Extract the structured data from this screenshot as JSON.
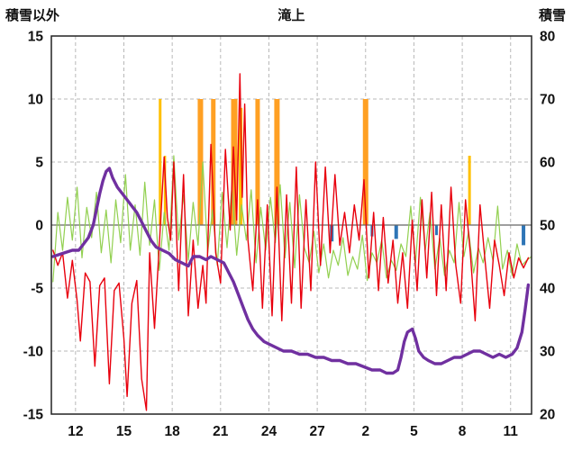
{
  "chart_data": {
    "type": "line",
    "title": "滝上",
    "y_left": {
      "label": "積雪以外",
      "min": -15,
      "max": 15,
      "ticks": [
        15,
        10,
        5,
        0,
        -5,
        -10,
        -15
      ]
    },
    "y_right": {
      "label": "積雪",
      "min": 20,
      "max": 80,
      "ticks": [
        80,
        70,
        60,
        50,
        40,
        30,
        20
      ]
    },
    "x_axis": {
      "min": 10.5,
      "max": 40.3,
      "ticks": [
        {
          "t": 12,
          "label": "12"
        },
        {
          "t": 15,
          "label": "15"
        },
        {
          "t": 18,
          "label": "18"
        },
        {
          "t": 21,
          "label": "21"
        },
        {
          "t": 24,
          "label": "24"
        },
        {
          "t": 27,
          "label": "27"
        },
        {
          "t": 30,
          "label": "2"
        },
        {
          "t": 33,
          "label": "5"
        },
        {
          "t": 36,
          "label": "8"
        },
        {
          "t": 39,
          "label": "11"
        }
      ]
    },
    "grid": {
      "color": "#b8b8b8",
      "dash": "4 3"
    },
    "zero_line_color": "#666666",
    "border_color": "#222222",
    "bars": [
      {
        "name": "precip-bar",
        "t": 17.25,
        "v": 10,
        "w": 3,
        "color": "#ffc000"
      },
      {
        "name": "precip-bar",
        "t": 17.55,
        "v": 5.5,
        "w": 2.5,
        "color": "#ffc000"
      },
      {
        "name": "precip-bar",
        "t": 19.75,
        "v": 10,
        "w": 6,
        "color": "#ffa023"
      },
      {
        "name": "precip-bar",
        "t": 20.55,
        "v": 10,
        "w": 5,
        "color": "#ffa023"
      },
      {
        "name": "precip-bar",
        "t": 21.85,
        "v": 10,
        "w": 7,
        "color": "#ffa023"
      },
      {
        "name": "precip-bar",
        "t": 22.25,
        "v": 9.3,
        "w": 4,
        "color": "#ffc000"
      },
      {
        "name": "precip-bar",
        "t": 23.3,
        "v": 10,
        "w": 5,
        "color": "#ffa023"
      },
      {
        "name": "precip-bar",
        "t": 24.5,
        "v": 10,
        "w": 6,
        "color": "#ffa023"
      },
      {
        "name": "precip-bar",
        "t": 30.0,
        "v": 10,
        "w": 6,
        "color": "#ffa023"
      },
      {
        "name": "precip-bar",
        "t": 36.45,
        "v": 5.5,
        "w": 3,
        "color": "#ffc000"
      },
      {
        "name": "rain-bar",
        "t": 27.9,
        "v": -1.3,
        "w": 4,
        "color": "#2e75b6"
      },
      {
        "name": "rain-bar",
        "t": 30.4,
        "v": -0.9,
        "w": 3,
        "color": "#2e75b6"
      },
      {
        "name": "rain-bar",
        "t": 31.9,
        "v": -1.1,
        "w": 4,
        "color": "#2e75b6"
      },
      {
        "name": "rain-bar",
        "t": 34.4,
        "v": -0.8,
        "w": 3,
        "color": "#2e75b6"
      },
      {
        "name": "rain-bar",
        "t": 39.8,
        "v": -1.6,
        "w": 4,
        "color": "#2e75b6"
      }
    ],
    "series": [
      {
        "name": "green-indicator",
        "axis": "left",
        "color": "#92d050",
        "width": 1.2,
        "sampled": {
          "start": 10.6,
          "step": 0.3,
          "values": [
            -4.5,
            1.0,
            -2.0,
            2.2,
            -1.2,
            3.0,
            -2.6,
            1.4,
            -1.0,
            2.6,
            -2.2,
            1.2,
            -3.0,
            2.0,
            -1.4,
            4.0,
            -2.0,
            1.6,
            -2.4,
            3.4,
            -1.6,
            2.0,
            -3.6,
            1.0,
            -2.0,
            5.5,
            -1.2,
            2.4,
            -2.8,
            1.8,
            -1.6,
            5.0,
            -2.2,
            1.2,
            -3.2,
            2.6,
            -1.8,
            3.0,
            -2.4,
            1.6,
            -1.2,
            2.8,
            -3.0,
            1.4,
            -2.0,
            2.2,
            -1.4,
            3.2,
            -2.6,
            1.8,
            -3.4,
            2.4,
            -1.8,
            -3.0,
            -0.5,
            -3.8,
            -1.5,
            -4.2,
            -2.0,
            -3.2,
            -1.0,
            -4.0,
            -2.5,
            -3.5,
            -0.8,
            -4.4,
            -2.2,
            -3.0,
            -1.2,
            -4.2,
            -2.8,
            -3.6,
            -1.5,
            -2.5,
            1.5,
            -3.0,
            2.2,
            -2.0,
            1.0,
            -3.5,
            -1.0,
            -4.0,
            -2.0,
            -3.0,
            1.8,
            -2.5,
            -0.5,
            -3.8,
            -1.8,
            -3.0,
            -1.0,
            -2.8,
            1.5,
            -3.5,
            -2.0,
            -4.0,
            -1.5,
            -3.2,
            -2.8,
            -2.5
          ]
        }
      },
      {
        "name": "temperature-line",
        "axis": "left",
        "color": "#e8000d",
        "width": 1.4,
        "points": [
          [
            10.6,
            -2.0
          ],
          [
            10.9,
            -3.2
          ],
          [
            11.2,
            -2.2
          ],
          [
            11.5,
            -5.8
          ],
          [
            11.8,
            -2.8
          ],
          [
            12.1,
            -6.0
          ],
          [
            12.3,
            -9.2
          ],
          [
            12.6,
            -3.8
          ],
          [
            12.9,
            -4.5
          ],
          [
            13.2,
            -11.2
          ],
          [
            13.5,
            -4.8
          ],
          [
            13.8,
            -4.2
          ],
          [
            14.1,
            -12.6
          ],
          [
            14.4,
            -5.2
          ],
          [
            14.7,
            -4.6
          ],
          [
            15.0,
            -9.0
          ],
          [
            15.2,
            -13.6
          ],
          [
            15.5,
            -6.2
          ],
          [
            15.8,
            -4.4
          ],
          [
            16.1,
            -12.2
          ],
          [
            16.4,
            -14.7
          ],
          [
            16.6,
            -2.2
          ],
          [
            16.9,
            -8.2
          ],
          [
            17.2,
            -1.6
          ],
          [
            17.5,
            5.4
          ],
          [
            17.7,
            0.6
          ],
          [
            17.9,
            -1.2
          ],
          [
            18.1,
            5.0
          ],
          [
            18.4,
            -5.2
          ],
          [
            18.7,
            4.0
          ],
          [
            19.0,
            -7.2
          ],
          [
            19.3,
            -1.2
          ],
          [
            19.6,
            -6.6
          ],
          [
            19.9,
            -3.2
          ],
          [
            20.1,
            -6.2
          ],
          [
            20.4,
            6.4
          ],
          [
            20.7,
            -2.2
          ],
          [
            21.0,
            -4.6
          ],
          [
            21.3,
            6.0
          ],
          [
            21.6,
            -0.4
          ],
          [
            21.8,
            6.2
          ],
          [
            22.0,
            0.4
          ],
          [
            22.2,
            12.0
          ],
          [
            22.35,
            2.2
          ],
          [
            22.5,
            9.6
          ],
          [
            22.7,
            -1.2
          ],
          [
            23.0,
            -5.2
          ],
          [
            23.3,
            2.0
          ],
          [
            23.6,
            -6.6
          ],
          [
            23.9,
            1.6
          ],
          [
            24.2,
            -7.2
          ],
          [
            24.5,
            3.0
          ],
          [
            24.8,
            -7.6
          ],
          [
            25.1,
            2.4
          ],
          [
            25.4,
            -6.2
          ],
          [
            25.7,
            4.6
          ],
          [
            26.0,
            -6.6
          ],
          [
            26.3,
            2.0
          ],
          [
            26.6,
            -5.2
          ],
          [
            26.9,
            5.0
          ],
          [
            27.2,
            -3.2
          ],
          [
            27.5,
            4.6
          ],
          [
            27.8,
            -2.2
          ],
          [
            28.1,
            4.0
          ],
          [
            28.4,
            -1.6
          ],
          [
            28.7,
            1.0
          ],
          [
            29.0,
            -2.2
          ],
          [
            29.3,
            1.6
          ],
          [
            29.6,
            -1.2
          ],
          [
            29.9,
            3.6
          ],
          [
            30.2,
            -4.2
          ],
          [
            30.5,
            1.0
          ],
          [
            30.8,
            -5.2
          ],
          [
            31.1,
            0.6
          ],
          [
            31.4,
            -4.6
          ],
          [
            31.7,
            -1.2
          ],
          [
            32.0,
            -6.2
          ],
          [
            32.3,
            -2.2
          ],
          [
            32.6,
            -6.6
          ],
          [
            32.9,
            0.4
          ],
          [
            33.2,
            -5.2
          ],
          [
            33.5,
            2.0
          ],
          [
            33.8,
            -4.2
          ],
          [
            34.1,
            2.6
          ],
          [
            34.4,
            -5.6
          ],
          [
            34.7,
            1.6
          ],
          [
            35.0,
            -5.2
          ],
          [
            35.3,
            3.0
          ],
          [
            35.6,
            -3.2
          ],
          [
            35.9,
            -6.2
          ],
          [
            36.2,
            2.0
          ],
          [
            36.5,
            -2.2
          ],
          [
            36.8,
            -7.6
          ],
          [
            37.1,
            1.6
          ],
          [
            37.4,
            -2.6
          ],
          [
            37.7,
            -6.6
          ],
          [
            38.0,
            -1.2
          ],
          [
            38.3,
            -3.2
          ],
          [
            38.6,
            -5.6
          ],
          [
            38.9,
            -2.2
          ],
          [
            39.2,
            -4.2
          ],
          [
            39.5,
            -2.6
          ],
          [
            39.8,
            -3.4
          ],
          [
            40.1,
            -2.6
          ]
        ]
      },
      {
        "name": "snow-depth-line",
        "axis": "right",
        "color": "#7030a0",
        "width": 3.4,
        "points": [
          [
            10.6,
            45
          ],
          [
            11.2,
            45.5
          ],
          [
            11.8,
            46
          ],
          [
            12.2,
            46
          ],
          [
            12.5,
            47
          ],
          [
            12.8,
            48
          ],
          [
            13.1,
            50
          ],
          [
            13.3,
            52.5
          ],
          [
            13.5,
            55
          ],
          [
            13.7,
            57
          ],
          [
            13.9,
            58.5
          ],
          [
            14.1,
            59
          ],
          [
            14.3,
            57.5
          ],
          [
            14.6,
            56
          ],
          [
            14.9,
            55
          ],
          [
            15.2,
            54
          ],
          [
            15.5,
            53
          ],
          [
            15.8,
            52
          ],
          [
            16.1,
            50.5
          ],
          [
            16.4,
            49
          ],
          [
            16.7,
            47.5
          ],
          [
            17.0,
            46.5
          ],
          [
            17.4,
            46
          ],
          [
            17.8,
            45.5
          ],
          [
            18.2,
            44.5
          ],
          [
            18.6,
            44
          ],
          [
            19.0,
            43.5
          ],
          [
            19.3,
            45
          ],
          [
            19.7,
            45
          ],
          [
            20.1,
            44.5
          ],
          [
            20.4,
            45
          ],
          [
            20.8,
            44.5
          ],
          [
            21.2,
            44
          ],
          [
            21.5,
            42.5
          ],
          [
            21.8,
            41
          ],
          [
            22.1,
            39
          ],
          [
            22.4,
            37
          ],
          [
            22.7,
            35
          ],
          [
            23.0,
            33.5
          ],
          [
            23.3,
            32.5
          ],
          [
            23.7,
            31.5
          ],
          [
            24.1,
            31
          ],
          [
            24.5,
            30.5
          ],
          [
            24.9,
            30
          ],
          [
            25.4,
            30
          ],
          [
            25.9,
            29.5
          ],
          [
            26.4,
            29.5
          ],
          [
            26.9,
            29
          ],
          [
            27.4,
            29
          ],
          [
            27.9,
            28.5
          ],
          [
            28.4,
            28.5
          ],
          [
            28.9,
            28
          ],
          [
            29.4,
            28
          ],
          [
            29.9,
            27.5
          ],
          [
            30.4,
            27
          ],
          [
            30.9,
            27
          ],
          [
            31.3,
            26.5
          ],
          [
            31.7,
            26.5
          ],
          [
            32.0,
            27
          ],
          [
            32.2,
            29
          ],
          [
            32.4,
            31.5
          ],
          [
            32.6,
            33
          ],
          [
            32.9,
            33.5
          ],
          [
            33.1,
            32
          ],
          [
            33.3,
            30
          ],
          [
            33.6,
            29
          ],
          [
            33.9,
            28.5
          ],
          [
            34.3,
            28
          ],
          [
            34.7,
            28
          ],
          [
            35.1,
            28.5
          ],
          [
            35.5,
            29
          ],
          [
            35.9,
            29
          ],
          [
            36.3,
            29.5
          ],
          [
            36.7,
            30
          ],
          [
            37.1,
            30
          ],
          [
            37.5,
            29.5
          ],
          [
            37.9,
            29
          ],
          [
            38.3,
            29.5
          ],
          [
            38.7,
            29
          ],
          [
            39.1,
            29.5
          ],
          [
            39.4,
            30.5
          ],
          [
            39.7,
            33
          ],
          [
            39.9,
            36.5
          ],
          [
            40.1,
            40.5
          ]
        ]
      }
    ]
  }
}
